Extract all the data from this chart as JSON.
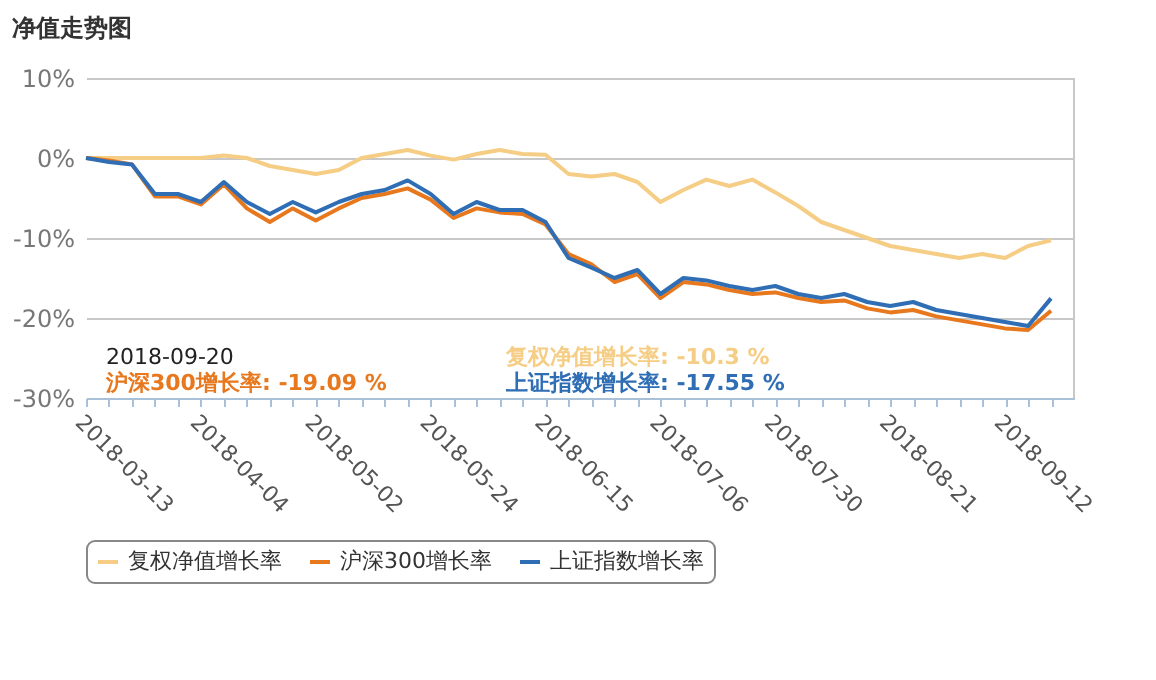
{
  "chart_data": {
    "type": "line",
    "title": "净值走势图",
    "categories": [
      "2018-03-13",
      null,
      null,
      null,
      null,
      "2018-04-04",
      null,
      null,
      null,
      null,
      "2018-05-02",
      null,
      null,
      null,
      null,
      "2018-05-24",
      null,
      null,
      null,
      null,
      "2018-06-15",
      null,
      null,
      null,
      null,
      "2018-07-06",
      null,
      null,
      null,
      null,
      "2018-07-30",
      null,
      null,
      null,
      null,
      "2018-08-21",
      null,
      null,
      null,
      null,
      "2018-09-12",
      null,
      null
    ],
    "series": [
      {
        "name": "复权净值增长率",
        "color": "#f5cd85",
        "values": [
          0,
          0,
          0,
          0,
          0,
          0,
          0.3,
          0,
          -1,
          -1.5,
          -2,
          -1.5,
          0,
          0.5,
          1,
          0.3,
          -0.2,
          0.5,
          1,
          0.5,
          0.4,
          -2,
          -2.3,
          -2,
          -3,
          -5.5,
          -4,
          -2.7,
          -3.5,
          -2.7,
          -4.3,
          -6,
          -8,
          -9,
          -10,
          -11,
          -11.5,
          -12,
          -12.5,
          -12,
          -12.5,
          -11,
          -10.3
        ]
      },
      {
        "name": "沪深300增长率",
        "color": "#e8781e",
        "values": [
          0,
          -0.3,
          -0.8,
          -4.8,
          -4.8,
          -5.8,
          -3.3,
          -6.3,
          -8,
          -6.3,
          -7.8,
          -6.3,
          -5,
          -4.5,
          -3.8,
          -5.2,
          -7.5,
          -6.3,
          -6.8,
          -7,
          -8.3,
          -12,
          -13.3,
          -15.5,
          -14.5,
          -17.5,
          -15.5,
          -15.8,
          -16.5,
          -17,
          -16.8,
          -17.5,
          -18,
          -17.8,
          -18.8,
          -19.3,
          -19,
          -19.8,
          -20.3,
          -20.8,
          -21.3,
          -21.5,
          -19.09
        ]
      },
      {
        "name": "上证指数增长率",
        "color": "#2f6eb5",
        "values": [
          0,
          -0.5,
          -0.8,
          -4.5,
          -4.5,
          -5.5,
          -3,
          -5.5,
          -7,
          -5.5,
          -6.8,
          -5.5,
          -4.5,
          -4,
          -2.8,
          -4.5,
          -7,
          -5.5,
          -6.5,
          -6.5,
          -8,
          -12.5,
          -13.7,
          -15,
          -14,
          -17,
          -15,
          -15.3,
          -16,
          -16.5,
          -16,
          -17,
          -17.5,
          -17,
          -18,
          -18.5,
          -18,
          -19,
          -19.5,
          -20,
          -20.5,
          -21,
          -17.55
        ]
      }
    ],
    "annotations": [
      "2018-09-20",
      "复权净值增长率: -10.3 %",
      "沪深300增长率: -19.09 %",
      "上证指数增长率: -17.55 %"
    ],
    "ylim": [
      -30,
      10
    ],
    "yticks": [
      {
        "value": 10,
        "label": "10%"
      },
      {
        "value": 0,
        "label": "0%"
      },
      {
        "value": -10,
        "label": "-10%"
      },
      {
        "value": -20,
        "label": "-20%"
      },
      {
        "value": -30,
        "label": "-30%"
      }
    ],
    "grid": "y",
    "legend": "bottom",
    "marker": "none",
    "line_style": "solid"
  }
}
